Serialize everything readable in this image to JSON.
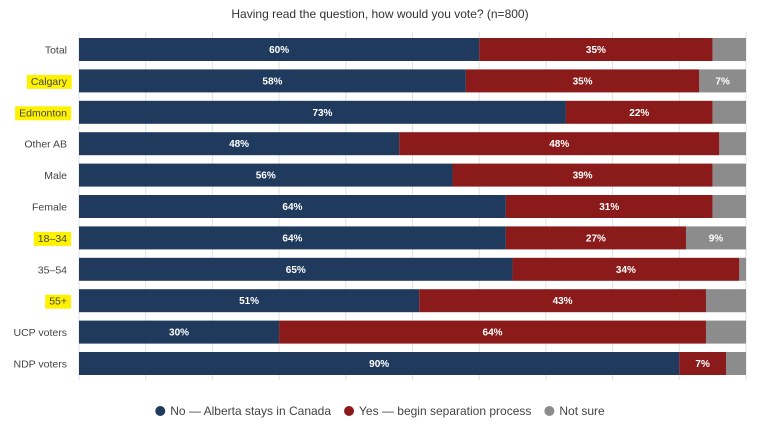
{
  "chart_data": {
    "type": "bar",
    "orientation": "horizontal",
    "stacked": true,
    "title": "Having read the question, how would you vote? (n=800)",
    "categories": [
      "Total",
      "Calgary",
      "Edmonton",
      "Other AB",
      "Male",
      "Female",
      "18–34",
      "35–54",
      "55+",
      "UCP voters",
      "NDP voters"
    ],
    "highlighted_categories": [
      "Calgary",
      "Edmonton",
      "18–34",
      "55+"
    ],
    "series": [
      {
        "name": "No — Alberta stays in Canada",
        "color": "#1f3a5c",
        "values": [
          60,
          58,
          73,
          48,
          56,
          64,
          64,
          65,
          51,
          30,
          90
        ]
      },
      {
        "name": "Yes — begin separation process",
        "color": "#8b1a1a",
        "values": [
          35,
          35,
          22,
          48,
          39,
          31,
          27,
          34,
          43,
          64,
          7
        ]
      },
      {
        "name": "Not sure",
        "color": "#8c8c8c",
        "values": [
          5,
          7,
          5,
          4,
          5,
          5,
          9,
          1,
          6,
          6,
          3
        ]
      }
    ],
    "data_labels": [
      [
        "60%",
        "58%",
        "73%",
        "48%",
        "56%",
        "64%",
        "64%",
        "65%",
        "51%",
        "30%",
        "90%"
      ],
      [
        "35%",
        "35%",
        "22%",
        "48%",
        "39%",
        "31%",
        "27%",
        "34%",
        "43%",
        "64%",
        "7%"
      ],
      [
        "",
        "7%",
        "",
        "",
        "",
        "",
        "9%",
        "",
        "",
        "",
        ""
      ]
    ],
    "xlim": [
      0,
      100
    ],
    "grid": true,
    "legend_position": "bottom",
    "highlight_color": "#fff200"
  }
}
